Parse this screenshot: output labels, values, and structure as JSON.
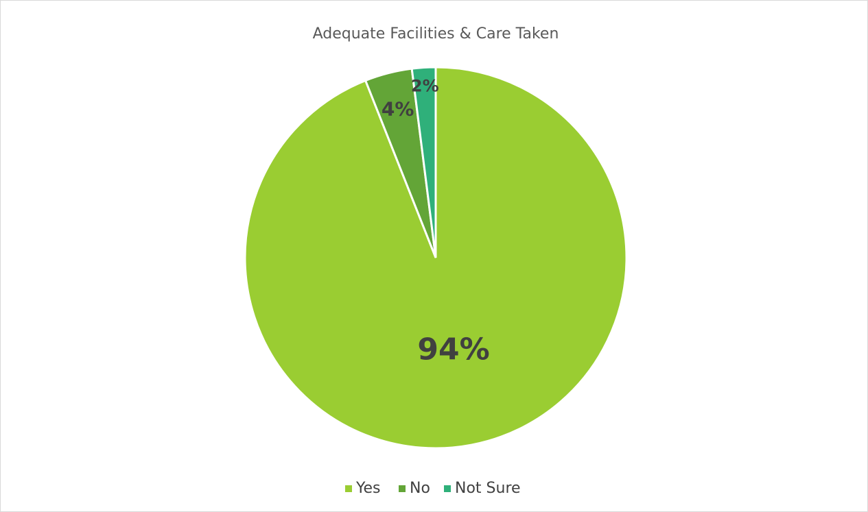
{
  "chart_data": {
    "type": "pie",
    "title": "Adequate Facilities & Care Taken",
    "categories": [
      "Yes",
      "No",
      "Not Sure"
    ],
    "values": [
      94,
      4,
      2
    ],
    "value_labels": [
      "94%",
      "4%",
      "2%"
    ],
    "colors": [
      "#9acd32",
      "#63a537",
      "#2fb07a"
    ],
    "legend": "bottom"
  }
}
